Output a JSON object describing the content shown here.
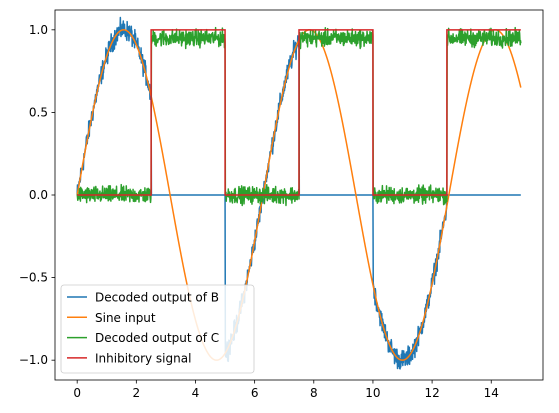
{
  "chart_data": {
    "type": "line",
    "title": "",
    "xlabel": "",
    "ylabel": "",
    "xlim": [
      -0.75,
      15.75
    ],
    "ylim": [
      -1.12,
      1.12
    ],
    "xticks": [
      0,
      2,
      4,
      6,
      8,
      10,
      12,
      14
    ],
    "yticks": [
      -1.0,
      -0.5,
      0.0,
      0.5,
      1.0
    ],
    "xtick_labels": [
      "0",
      "2",
      "4",
      "6",
      "8",
      "10",
      "12",
      "14"
    ],
    "ytick_labels": [
      "−1.0",
      "−0.5",
      "0.0",
      "0.5",
      "1.0"
    ],
    "grid": false,
    "legend_position": "lower-left",
    "series": [
      {
        "name": "Decoded output of B",
        "color": "#1f77b4",
        "description": "noisy sin(t) when inhibitory signal is 0, else 0",
        "x": [
          0,
          0.5,
          1.0,
          1.5,
          2.0,
          2.5,
          2.5,
          5.0,
          5.0,
          5.5,
          6.0,
          6.5,
          7.0,
          7.5,
          7.5,
          10.0,
          10.0,
          10.5,
          11.0,
          11.5,
          12.0,
          12.5,
          12.5,
          15.0
        ],
        "y": [
          0.0,
          0.48,
          0.84,
          1.0,
          0.91,
          0.6,
          0.0,
          0.0,
          -0.96,
          -0.71,
          -0.28,
          0.22,
          0.66,
          0.94,
          0.0,
          0.0,
          -0.54,
          -0.88,
          -1.0,
          -0.88,
          -0.54,
          -0.07,
          0.0,
          0.0
        ]
      },
      {
        "name": "Sine input",
        "color": "#ff7f0e",
        "description": "y = sin(t)",
        "x": [
          0,
          1,
          2,
          3,
          4,
          5,
          6,
          7,
          8,
          9,
          10,
          11,
          12,
          13,
          14,
          15
        ],
        "y": [
          0.0,
          0.84,
          0.91,
          0.14,
          -0.76,
          -0.96,
          -0.28,
          0.66,
          0.99,
          0.41,
          -0.54,
          -1.0,
          -0.54,
          0.42,
          0.99,
          0.65
        ]
      },
      {
        "name": "Decoded output of C",
        "color": "#2ca02c",
        "description": "noisy copy of inhibitory signal",
        "x": [
          0,
          2.5,
          2.5,
          5.0,
          5.0,
          7.5,
          7.5,
          10.0,
          10.0,
          12.5,
          12.5,
          15.0
        ],
        "y": [
          0.0,
          0.0,
          0.95,
          0.95,
          0.0,
          0.0,
          0.95,
          0.95,
          0.0,
          0.0,
          0.95,
          0.95
        ]
      },
      {
        "name": "Inhibitory signal",
        "color": "#d62728",
        "description": "square wave, period 5",
        "x": [
          0,
          2.5,
          2.5,
          5.0,
          5.0,
          7.5,
          7.5,
          10.0,
          10.0,
          12.5,
          12.5,
          15.0
        ],
        "y": [
          0,
          0,
          1,
          1,
          0,
          0,
          1,
          1,
          0,
          0,
          1,
          1
        ]
      }
    ]
  }
}
